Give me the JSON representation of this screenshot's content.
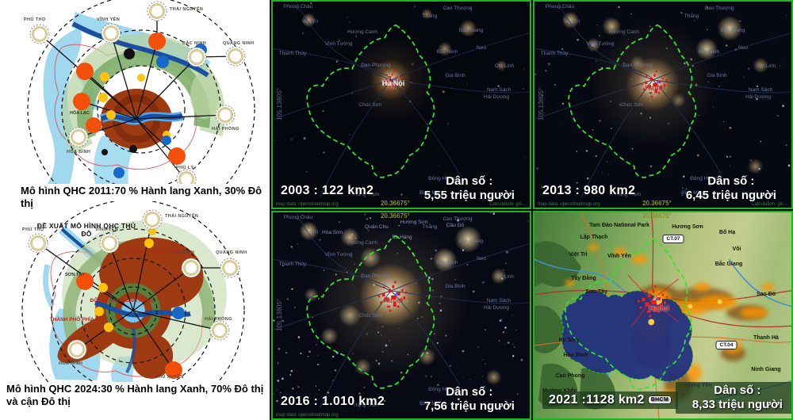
{
  "left_column": {
    "diagram1": {
      "caption": "Mô hình QHC 2011:70 % Hành lang Xanh, 30% Đô thị",
      "ring_labels": [
        "PHÚ THỌ",
        "VĨNH YÊN",
        "THÁI NGUYÊN",
        "BẮC NINH",
        "QUẢNG NINH",
        "HẢI PHÒNG",
        "HÒA BÌNH",
        "PHỦ LÝ"
      ],
      "site_labels": [
        "HÒA LẠC"
      ]
    },
    "diagram2": {
      "title": "ĐỀ XUẤT MÔ HÌNH QHC THỦ ĐÔ",
      "caption_line1": "Mô hình QHC 2024:30 % Hành lang Xanh, 70% Đô thị",
      "caption_line2": "và cận Đô thị",
      "ring_labels": [
        "PHÚ THỌ",
        "VĨNH YÊN",
        "THÁI NGUYÊN",
        "BẮC NINH",
        "QUẢNG NINH",
        "HẢI PHÒNG",
        "HÒA BÌNH",
        "PHÚ XUYÊN"
      ],
      "zone_labels": [
        "THÀNH PHỐ PHÍA BẮC",
        "ĐÔ THỊ NAM SÔNG HỒNG",
        "THÀNH PHỐ PHÍA TÂY"
      ],
      "site_labels": [
        "SƠN TÂY"
      ]
    }
  },
  "panels": [
    {
      "id": "2003",
      "year_area": "2003 : 122 km2",
      "pop_line1": "Dân số :",
      "pop_line2": "5,55 triệu người",
      "city_label": "Hà Nội"
    },
    {
      "id": "2013",
      "year_area": "2013 : 980 km2",
      "pop_line1": "Dân số :",
      "pop_line2": "6,45 triệu người",
      "city_label": "Hanoi"
    },
    {
      "id": "2016",
      "year_area": "2016 : 1.010 km2",
      "pop_line1": "Dân số :",
      "pop_line2": "7,56 triệu người",
      "city_label": "Hanoi"
    },
    {
      "id": "2021",
      "year_area": "2021 :1128 km2",
      "pop_line1": "Dân số :",
      "pop_line2": "8,33 triệu người",
      "city_label": "Hanoi",
      "road_badge": "ĐHCM"
    }
  ],
  "urban_growth": [
    {
      "year": "2003",
      "area_km2": "122",
      "population": "5,55 triệu người"
    },
    {
      "year": "2013",
      "area_km2": "980",
      "population": "6,45 triệu người"
    },
    {
      "year": "2016",
      "area_km2": "1.010",
      "population": "7,56 triệu người"
    },
    {
      "year": "2021",
      "area_km2": "1128",
      "population": "8,33 triệu người"
    }
  ],
  "night_places": [
    "Phong Châu",
    "Việt Trì",
    "Cao Thượng",
    "Thắng",
    "Bắc Giang",
    "Hương Canh",
    "Vĩnh Tường",
    "Thanh Thủy",
    "Bắc Ninh",
    "Neo",
    "Đan Phượng",
    "Chí Linh",
    "Gia Bình",
    "Nam Sách",
    "Hải Dương",
    "Chúc Sơn",
    "Bình Mỹ",
    "Đông Hưng",
    "Hàng Trạm"
  ],
  "night_places_extra_2016": [
    "Quân Chu",
    "Hương Sơn",
    "Cầu Gồ",
    "Hòa Sơn",
    "Ba Hàng"
  ],
  "topo_places": [
    "Tam Đảo National Park",
    "Lập Thạch",
    "Hương Sơn",
    "Bố Hạ",
    "Việt Trì",
    "Vĩnh Yên",
    "Vôi",
    "Bắc Giang",
    "Tây Đằng",
    "Sơn Tây",
    "Sao Đỏ",
    "Kỳ Sơn",
    "Hòa Bình",
    "Cao Phong",
    "Mường Khến",
    "Phú Xuyên",
    "Hưng Yên",
    "Ninh Giang",
    "Thanh Hà"
  ],
  "badges": {
    "ct07": "CT.07",
    "ct04": "CT.04"
  },
  "meta": {
    "map_credit": "map data: openstreetmap.org",
    "lat": "20.36675°",
    "lon": "105.13805°",
    "calc": "Calculation: gis…"
  },
  "colors": {
    "green_frame": "#1db520",
    "boundary_green": "#2ee62e",
    "core_brown": "#9e3a12",
    "corridor_green": "#7fae6b",
    "satellite_orange": "#f2500a",
    "eco_yellow": "#ffc20e",
    "city_blue": "#1669c9",
    "heat_orange": "#ff9400"
  }
}
